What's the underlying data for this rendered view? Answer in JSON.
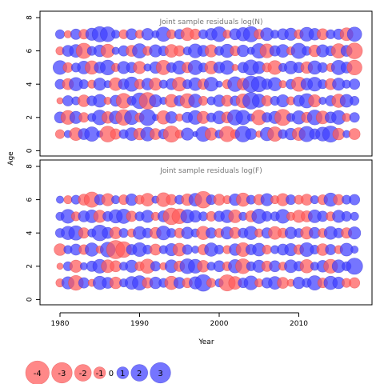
{
  "chart_data": {
    "type": "scatter",
    "encoding": "bubble",
    "xlabel": "Year",
    "ylabel": "Age",
    "x_ticks": [
      1980,
      1990,
      2000,
      2010
    ],
    "y_ticks": [
      0,
      2,
      4,
      6,
      8
    ],
    "xlim": [
      1975,
      2019
    ],
    "ylim": [
      -0.3,
      8.3
    ],
    "years": [
      1980,
      1981,
      1982,
      1983,
      1984,
      1985,
      1986,
      1987,
      1988,
      1989,
      1990,
      1991,
      1992,
      1993,
      1994,
      1995,
      1996,
      1997,
      1998,
      1999,
      2000,
      2001,
      2002,
      2003,
      2004,
      2005,
      2006,
      2007,
      2008,
      2009,
      2010,
      2011,
      2012,
      2013,
      2014,
      2015,
      2016,
      2017
    ],
    "colors": {
      "positive": "#4040ff",
      "negative": "#ff5a5a",
      "edge_positive": "#3030cc",
      "edge_negative": "#e04040"
    },
    "panels": [
      {
        "title": "Joint sample residuals log(N)",
        "ages": [
          1,
          2,
          3,
          4,
          5,
          6,
          7
        ],
        "residuals": [
          [
            -0.6,
            0.4,
            -1.2,
            0.9,
            1.5,
            0.3,
            -1.8,
            -0.8,
            0.6,
            1.2,
            -1.0,
            1.4,
            -0.9,
            0.7,
            -1.9,
            -0.5,
            1.1,
            0.2,
            1.6,
            -1.1,
            0.5,
            -1.7,
            -0.6,
            1.8,
            0.9,
            -0.3,
            1.3,
            -1.5,
            0.6,
            1.0,
            -1.2,
            1.7,
            0.8,
            1.4,
            1.9,
            -1.0,
            0.4,
            -0.9
          ],
          [
            0.9,
            -1.4,
            1.1,
            -0.7,
            0.5,
            1.6,
            -1.0,
            1.2,
            -1.8,
            1.5,
            -0.6,
            1.9,
            0.3,
            -1.3,
            1.0,
            -0.4,
            0.8,
            1.4,
            -1.1,
            0.6,
            1.2,
            -0.9,
            1.7,
            1.5,
            0.4,
            -1.6,
            0.7,
            1.1,
            -1.9,
            0.5,
            1.3,
            -0.8,
            1.6,
            -1.2,
            0.9,
            1.4,
            -0.5,
            0.7
          ],
          [
            -0.3,
            0.8,
            0.5,
            -1.0,
            0.7,
            1.2,
            -0.4,
            0.9,
            -1.6,
            0.6,
            1.8,
            -2.0,
            1.1,
            0.4,
            -1.2,
            0.8,
            -1.5,
            1.3,
            -0.6,
            0.5,
            1.0,
            -0.9,
            0.7,
            -1.4,
            2.0,
            1.3,
            -0.8,
            0.6,
            1.1,
            -0.5,
            0.9,
            1.5,
            -1.1,
            0.4,
            0.8,
            -1.3,
            1.2,
            0.6
          ],
          [
            0.7,
            -0.9,
            1.3,
            0.6,
            -0.5,
            1.1,
            0.4,
            -1.2,
            0.8,
            1.5,
            -0.7,
            1.0,
            -1.1,
            0.5,
            0.9,
            -1.4,
            0.6,
            1.2,
            -0.8,
            1.4,
            0.3,
            -0.6,
            1.6,
            -1.0,
            1.9,
            1.7,
            0.8,
            1.3,
            -0.4,
            0.7,
            -1.5,
            1.0,
            1.4,
            0.6,
            -0.9,
            1.1,
            0.5,
            0.8
          ],
          [
            1.4,
            -0.7,
            0.6,
            1.2,
            -1.3,
            0.9,
            1.6,
            -0.5,
            1.1,
            0.8,
            -1.1,
            0.4,
            1.0,
            -1.5,
            0.7,
            1.3,
            -0.8,
            1.5,
            0.6,
            -1.2,
            0.9,
            1.4,
            -0.3,
            0.8,
            1.7,
            1.1,
            -0.6,
            -1.4,
            0.5,
            1.2,
            0.8,
            -1.0,
            1.3,
            0.7,
            -0.5,
            1.5,
            0.9,
            -1.6
          ],
          [
            -0.5,
            0.9,
            1.2,
            -1.7,
            0.6,
            1.0,
            -1.3,
            0.4,
            0.8,
            -0.9,
            1.5,
            -0.6,
            1.1,
            0.7,
            -1.2,
            -0.8,
            0.5,
            1.4,
            0.9,
            -1.1,
            0.6,
            1.3,
            -0.7,
            1.0,
            0.4,
            1.6,
            -1.4,
            0.8,
            1.2,
            -0.5,
            1.7,
            0.6,
            -1.0,
            1.1,
            0.7,
            -1.5,
            0.9,
            -1.8
          ],
          [
            0.6,
            -0.4,
            0.8,
            -0.7,
            1.1,
            1.7,
            1.6,
            0.5,
            -0.6,
            0.9,
            -0.5,
            1.0,
            0.4,
            1.5,
            -0.6,
            0.7,
            -1.2,
            -0.8,
            0.6,
            1.0,
            1.6,
            -0.5,
            0.9,
            1.3,
            1.7,
            -0.7,
            1.2,
            0.5,
            0.9,
            1.1,
            -0.6,
            1.4,
            1.0,
            -0.9,
            0.6,
            0.8,
            -1.2,
            1.5
          ]
        ]
      },
      {
        "title": "Joint sample residuals log(F)",
        "ages": [
          1,
          2,
          3,
          4,
          5,
          6
        ],
        "residuals": [
          [
            -0.5,
            1.1,
            -1.6,
            0.8,
            -0.4,
            1.3,
            0.9,
            -1.0,
            0.5,
            1.2,
            1.5,
            -0.8,
            1.0,
            0.6,
            -1.3,
            0.9,
            -0.7,
            1.1,
            2.0,
            -0.6,
            0.5,
            -1.9,
            -1.2,
            0.7,
            1.4,
            -0.5,
            0.8,
            1.2,
            -0.9,
            -0.4,
            1.0,
            0.6,
            1.5,
            -0.7,
            1.3,
            1.0,
            -0.6,
            -0.8
          ],
          [
            -0.3,
            0.6,
            -1.1,
            0.4,
            0.8,
            1.4,
            -1.2,
            -0.9,
            0.5,
            1.1,
            -0.6,
            -1.5,
            0.7,
            -0.4,
            1.2,
            -0.8,
            1.6,
            1.4,
            -1.0,
            0.5,
            0.9,
            -0.6,
            1.3,
            -1.6,
            0.6,
            1.1,
            -0.8,
            0.9,
            -0.5,
            1.2,
            0.7,
            -1.3,
            0.5,
            1.0,
            -1.4,
            1.2,
            0.6,
            1.9
          ],
          [
            -1.0,
            0.5,
            0.9,
            -0.7,
            1.3,
            -0.4,
            1.6,
            -2.4,
            -1.8,
            0.8,
            1.4,
            0.6,
            -0.9,
            0.5,
            1.1,
            -1.2,
            0.7,
            0.4,
            -0.8,
            1.3,
            0.6,
            -0.5,
            1.0,
            -1.4,
            0.8,
            1.2,
            -0.6,
            0.5,
            0.9,
            1.1,
            -0.7,
            1.4,
            0.6,
            -1.0,
            0.8,
            -0.5,
            1.2,
            0.4
          ],
          [
            0.6,
            1.3,
            1.5,
            -0.8,
            0.5,
            1.8,
            0.9,
            -1.0,
            0.6,
            -0.5,
            1.2,
            0.7,
            -0.9,
            1.4,
            0.6,
            -0.7,
            1.0,
            0.5,
            -1.3,
            0.8,
            -0.6,
            1.1,
            -0.9,
            0.7,
            1.3,
            -0.5,
            0.8,
            -1.2,
            -0.7,
            1.0,
            0.6,
            -1.1,
            0.9,
            -0.6,
            1.2,
            0.7,
            -0.8,
            1.1
          ],
          [
            0.5,
            1.4,
            -0.6,
            0.9,
            1.2,
            -1.1,
            0.7,
            1.3,
            1.5,
            -0.8,
            0.6,
            1.1,
            -0.5,
            0.9,
            -2.0,
            -1.6,
            1.3,
            1.0,
            0.6,
            -0.7,
            0.8,
            1.2,
            -1.2,
            0.5,
            -0.9,
            1.5,
            0.7,
            0.6,
            1.4,
            -0.5,
            -1.1,
            -0.9,
            1.2,
            0.8,
            -0.6,
            1.1,
            0.7,
            0.5
          ],
          [
            0.4,
            -0.5,
            0.6,
            -0.9,
            -1.7,
            0.8,
            -1.1,
            0.5,
            -0.7,
            1.0,
            -0.6,
            -1.2,
            0.4,
            -1.4,
            -0.8,
            0.6,
            -1.0,
            1.2,
            -2.0,
            0.7,
            -0.9,
            -0.5,
            1.0,
            -1.3,
            0.6,
            -0.8,
            1.1,
            -0.5,
            -1.1,
            0.7,
            -0.6,
            -0.9,
            0.5,
            -0.7,
            1.3,
            -0.8,
            0.6,
            0.8
          ]
        ]
      }
    ],
    "legend": {
      "placement": "bottom-left",
      "values": [
        -4,
        -3,
        -2,
        -1,
        0,
        1,
        2,
        3
      ],
      "labels": [
        "-4",
        "-3",
        "-2",
        "-1",
        "0",
        "1",
        "2",
        "3"
      ]
    }
  }
}
